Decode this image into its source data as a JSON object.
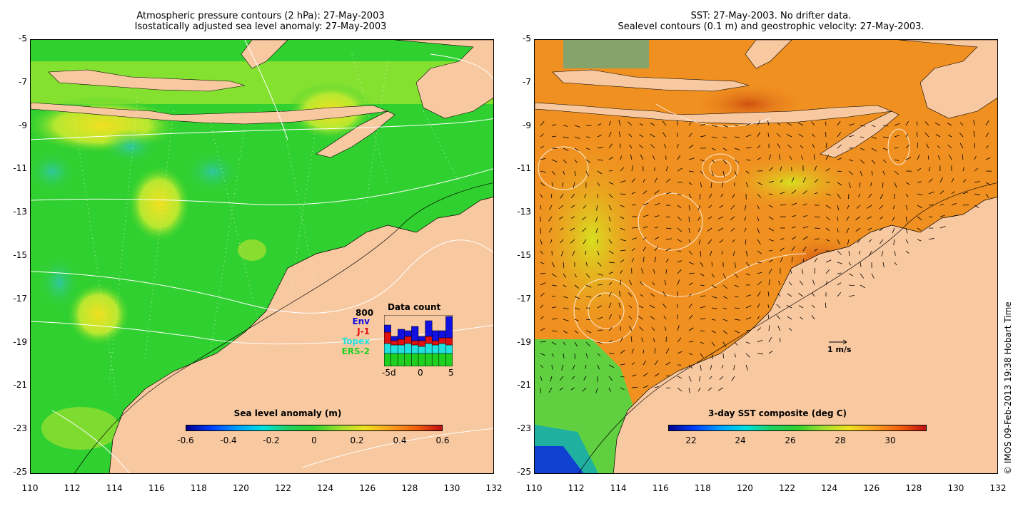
{
  "left_panel": {
    "title_line1": "Atmospheric pressure contours (2 hPa): 27-May-2003",
    "title_line2": "Isostatically adjusted sea level anomaly: 27-May-2003",
    "y_ticks": [
      "-5",
      "-7",
      "-9",
      "-11",
      "-13",
      "-15",
      "-17",
      "-19",
      "-21",
      "-23",
      "-25"
    ],
    "x_ticks": [
      "110",
      "112",
      "114",
      "116",
      "118",
      "120",
      "122",
      "124",
      "126",
      "128",
      "130",
      "132"
    ],
    "colorbar": {
      "title": "Sea level anomaly (m)",
      "ticks": [
        "-0.6",
        "-0.4",
        "-0.2",
        "0",
        "0.2",
        "0.4",
        "0.6"
      ]
    },
    "data_count": {
      "title": "Data count",
      "max_label": "800",
      "legend": [
        {
          "label": "Env",
          "color": "#1010e0"
        },
        {
          "label": "J-1",
          "color": "#e01010"
        },
        {
          "label": "Topex",
          "color": "#20e0e0"
        },
        {
          "label": "ERS-2",
          "color": "#20d020"
        }
      ],
      "x_ticks": [
        "-5d",
        "0",
        "5"
      ]
    }
  },
  "right_panel": {
    "title_line1": "SST: 27-May-2003. No drifter data.",
    "title_line2": "Sealevel contours (0.1 m) and geostrophic velocity: 27-May-2003.",
    "y_ticks": [
      "-5",
      "-7",
      "-9",
      "-11",
      "-13",
      "-15",
      "-17",
      "-19",
      "-21",
      "-23",
      "-25"
    ],
    "x_ticks": [
      "110",
      "112",
      "114",
      "116",
      "118",
      "120",
      "122",
      "124",
      "126",
      "128",
      "130",
      "132"
    ],
    "colorbar": {
      "title": "3-day SST composite (deg C)",
      "ticks": [
        "22",
        "24",
        "26",
        "28",
        "30"
      ]
    },
    "velocity_reference": "1 m/s"
  },
  "copyright": "© IMOS 09-Feb-2013 19:38 Hobart Time",
  "colors": {
    "land": "#f8c8a0",
    "sla_ocean": "#30d030",
    "sst_ocean": "#f09020"
  }
}
